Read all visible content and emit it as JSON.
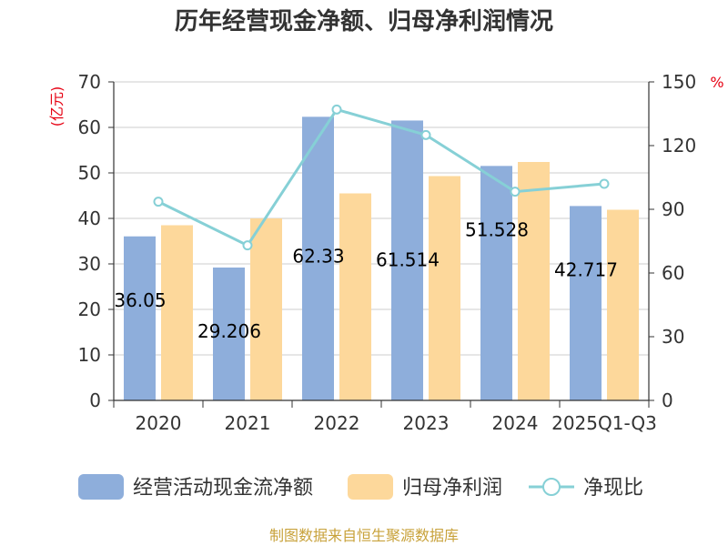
{
  "chart_data": {
    "type": "bar",
    "title": "历年经营现金净额、归母净利润情况",
    "categories": [
      "2020",
      "2021",
      "2022",
      "2023",
      "2024",
      "2025Q1-Q3"
    ],
    "left_axis": {
      "unit": "(亿元)",
      "ylim": [
        0,
        70
      ],
      "ticks": [
        "0",
        "10",
        "20",
        "30",
        "40",
        "50",
        "60",
        "70"
      ]
    },
    "right_axis": {
      "unit": "%",
      "ylim": [
        0,
        150
      ],
      "ticks": [
        "0",
        "30",
        "60",
        "90",
        "120",
        "150"
      ]
    },
    "series": [
      {
        "name": "经营活动现金流净额",
        "type": "bar",
        "axis": "left",
        "color": "#8eaedb",
        "values": [
          36.05,
          29.2,
          62.33,
          61.51,
          51.53,
          42.72
        ],
        "labels": [
          "36.05",
          "29.206",
          "62.33",
          "61.514",
          "51.528",
          "42.717"
        ]
      },
      {
        "name": "归母净利润",
        "type": "bar",
        "axis": "left",
        "color": "#fdd89b",
        "values": [
          38.5,
          40.0,
          45.5,
          49.3,
          52.4,
          41.9
        ]
      },
      {
        "name": "净现比",
        "type": "line",
        "axis": "right",
        "color": "#86d0d6",
        "values": [
          93.6,
          73.0,
          137.0,
          125.0,
          98.3,
          102.0
        ]
      }
    ],
    "grid": true,
    "legend": "bottom"
  },
  "source": "制图数据来自恒生聚源数据库"
}
